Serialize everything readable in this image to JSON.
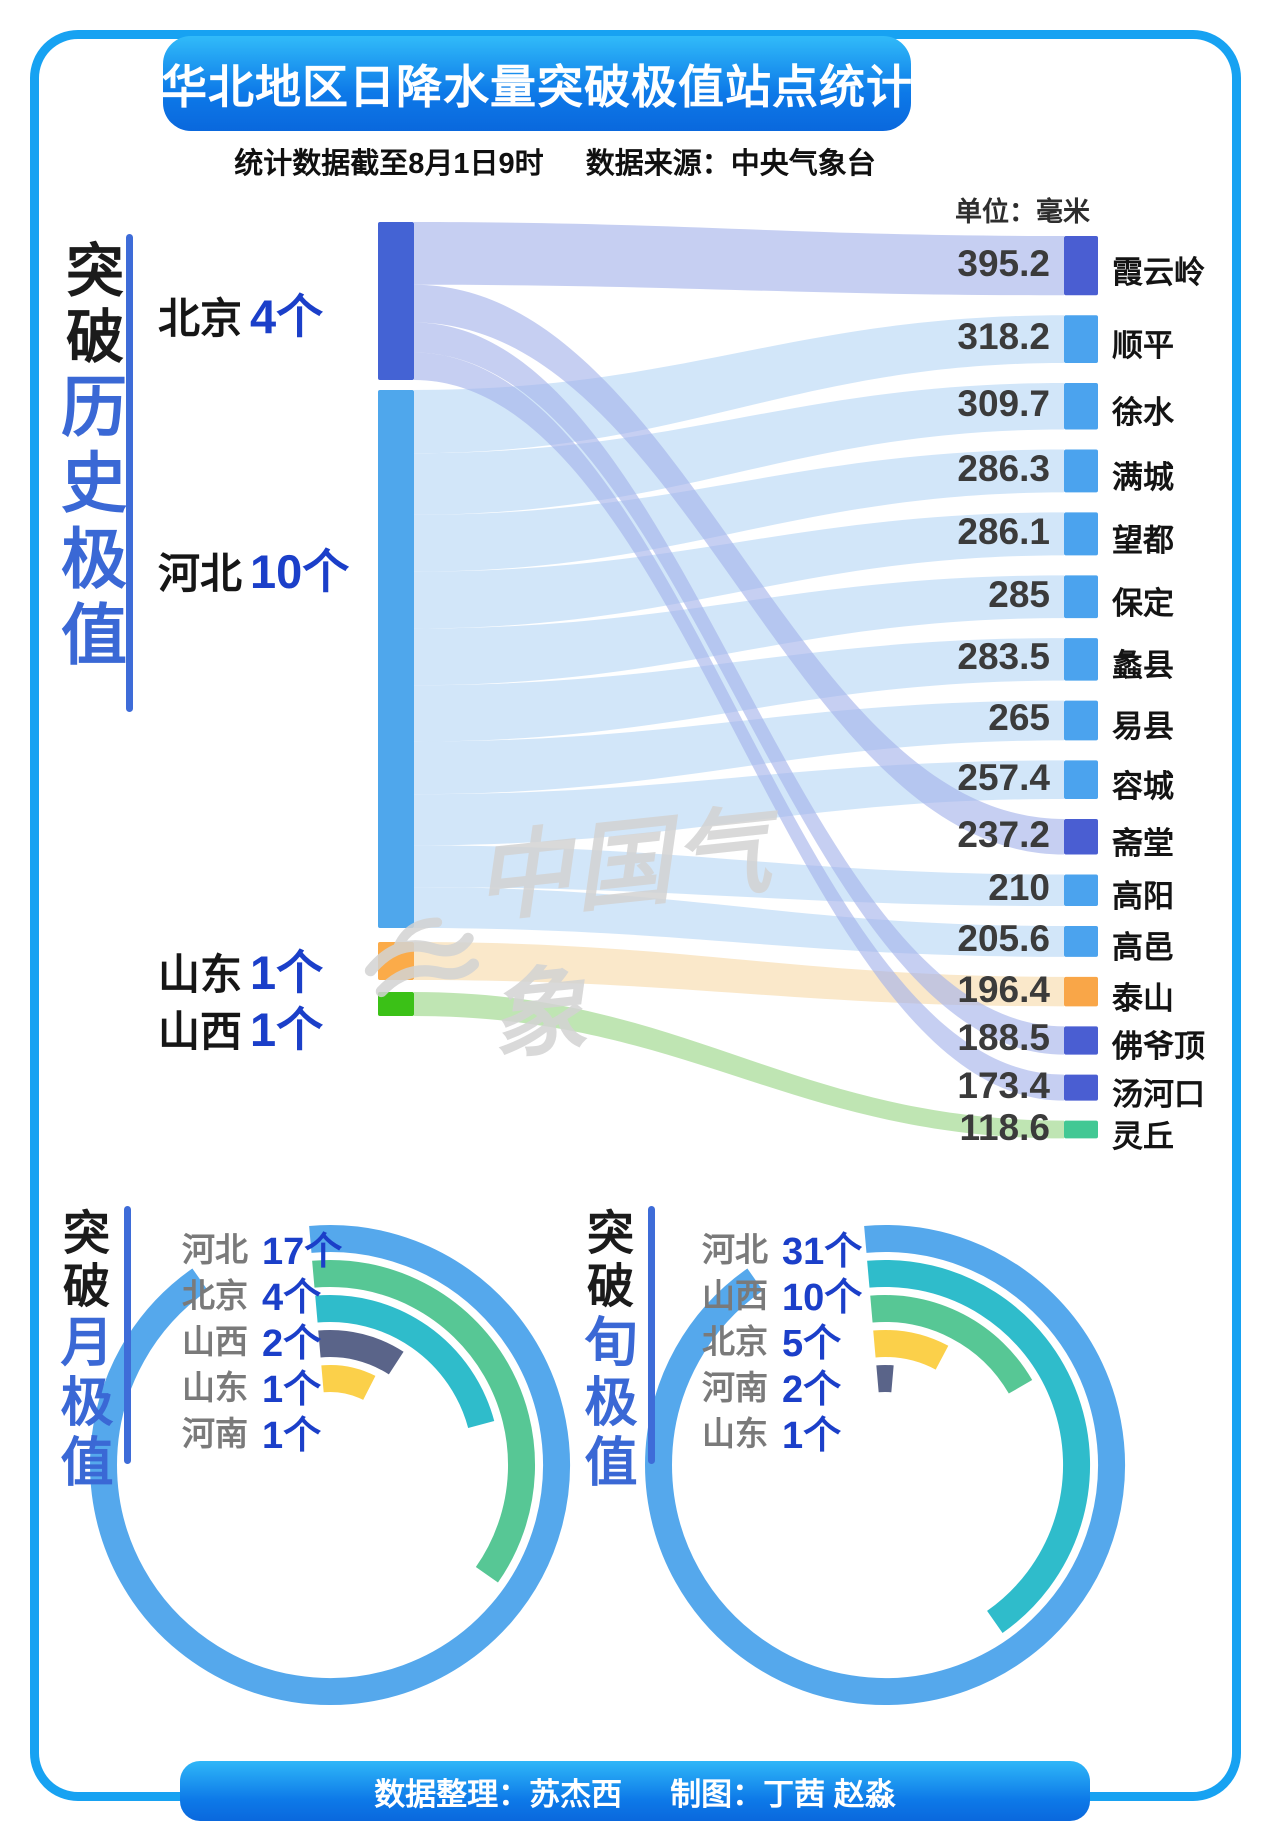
{
  "header": {
    "title": "华北地区日降水量突破极值站点统计",
    "subtitle_left": "统计数据截至8月1日9时",
    "subtitle_right": "数据来源：中央气象台",
    "unit_label": "单位：毫米"
  },
  "watermark": {
    "text": "中国气象"
  },
  "footer": {
    "credit_data": "数据整理：苏杰西",
    "credit_chart": "制图：丁茜 赵淼"
  },
  "colors": {
    "border_blue": "#17a2f2",
    "accent_blue": "#1b3fc9",
    "title_blue": "#3a68d5"
  },
  "chart_data": [
    {
      "type": "sankey",
      "title": {
        "prefix": "突破",
        "emphasis": "历史极值"
      },
      "unit": "毫米",
      "sources": [
        {
          "name": "北京",
          "count": 4,
          "count_label": "4个",
          "node_color": "#4463d4",
          "flow_color": "#a3b2ea",
          "flow_opacity": 0.62
        },
        {
          "name": "河北",
          "count": 10,
          "count_label": "10个",
          "node_color": "#4fa7ec",
          "flow_color": "#cee4f9",
          "flow_opacity": 0.92
        },
        {
          "name": "山东",
          "count": 1,
          "count_label": "1个",
          "node_color": "#fbab49",
          "flow_color": "#fae6c6",
          "flow_opacity": 0.92
        },
        {
          "name": "山西",
          "count": 1,
          "count_label": "1个",
          "node_color": "#3bc117",
          "flow_color": "#bae3ad",
          "flow_opacity": 0.92
        }
      ],
      "stations": [
        {
          "name": "霞云岭",
          "value": 395.2,
          "label": "395.2",
          "province": "北京",
          "node_color": "#4a5ed2"
        },
        {
          "name": "顺平",
          "value": 318.2,
          "label": "318.2",
          "province": "河北",
          "node_color": "#4ba3ee"
        },
        {
          "name": "徐水",
          "value": 309.7,
          "label": "309.7",
          "province": "河北",
          "node_color": "#4ba3ee"
        },
        {
          "name": "满城",
          "value": 286.3,
          "label": "286.3",
          "province": "河北",
          "node_color": "#4ba3ee"
        },
        {
          "name": "望都",
          "value": 286.1,
          "label": "286.1",
          "province": "河北",
          "node_color": "#4ba3ee"
        },
        {
          "name": "保定",
          "value": 285,
          "label": "285",
          "province": "河北",
          "node_color": "#4ba3ee"
        },
        {
          "name": "蠡县",
          "value": 283.5,
          "label": "283.5",
          "province": "河北",
          "node_color": "#4ba3ee"
        },
        {
          "name": "易县",
          "value": 265,
          "label": "265",
          "province": "河北",
          "node_color": "#4ba3ee"
        },
        {
          "name": "容城",
          "value": 257.4,
          "label": "257.4",
          "province": "河北",
          "node_color": "#4ba3ee"
        },
        {
          "name": "斋堂",
          "value": 237.2,
          "label": "237.2",
          "province": "北京",
          "node_color": "#4a5ed2"
        },
        {
          "name": "高阳",
          "value": 210,
          "label": "210",
          "province": "河北",
          "node_color": "#4ba3ee"
        },
        {
          "name": "高邑",
          "value": 205.6,
          "label": "205.6",
          "province": "河北",
          "node_color": "#4ba3ee"
        },
        {
          "name": "泰山",
          "value": 196.4,
          "label": "196.4",
          "province": "山东",
          "node_color": "#f9a648"
        },
        {
          "name": "佛爷顶",
          "value": 188.5,
          "label": "188.5",
          "province": "北京",
          "node_color": "#4a5ed2"
        },
        {
          "name": "汤河口",
          "value": 173.4,
          "label": "173.4",
          "province": "北京",
          "node_color": "#4a5ed2"
        },
        {
          "name": "灵丘",
          "value": 118.6,
          "label": "118.6",
          "province": "山西",
          "node_color": "#42c894"
        }
      ]
    },
    {
      "type": "radial_bar",
      "title": {
        "prefix": "突破",
        "emphasis": "月极值"
      },
      "series": [
        {
          "name": "河北",
          "count": 17,
          "label": "17个",
          "color": "#55a8ec",
          "sweep_deg": 330
        },
        {
          "name": "北京",
          "count": 4,
          "label": "4个",
          "color": "#57c795",
          "sweep_deg": 130
        },
        {
          "name": "山西",
          "count": 2,
          "label": "2个",
          "color": "#2fbccb",
          "sweep_deg": 80
        },
        {
          "name": "山东",
          "count": 1,
          "label": "1个",
          "color": "#5a6489",
          "sweep_deg": 38
        },
        {
          "name": "河南",
          "count": 1,
          "label": "1个",
          "color": "#fbd04a",
          "sweep_deg": 32
        }
      ]
    },
    {
      "type": "radial_bar",
      "title": {
        "prefix": "突破",
        "emphasis": "旬极值"
      },
      "series": [
        {
          "name": "河北",
          "count": 31,
          "label": "31个",
          "color": "#55a8ec",
          "sweep_deg": 330
        },
        {
          "name": "山西",
          "count": 10,
          "label": "10个",
          "color": "#2fbccb",
          "sweep_deg": 150
        },
        {
          "name": "北京",
          "count": 5,
          "label": "5个",
          "color": "#57c795",
          "sweep_deg": 65
        },
        {
          "name": "河南",
          "count": 2,
          "label": "2个",
          "color": "#fbd04a",
          "sweep_deg": 33
        },
        {
          "name": "山东",
          "count": 1,
          "label": "1个",
          "color": "#5a6489",
          "sweep_deg": 10
        }
      ]
    }
  ]
}
